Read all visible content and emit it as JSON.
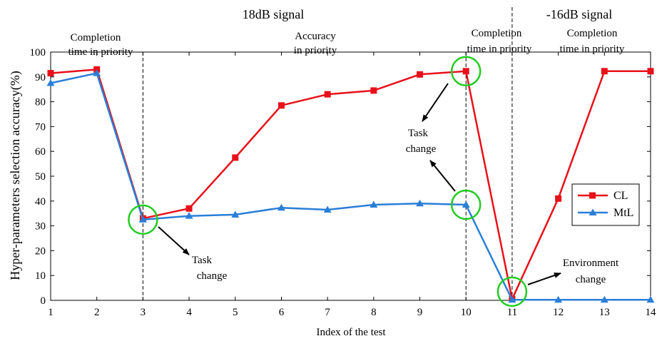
{
  "chart_data": {
    "type": "line",
    "title": "",
    "xlabel": "Index of the test",
    "ylabel": "Hyper-parameters selection accuracy(%)",
    "xlim": [
      1,
      14
    ],
    "ylim": [
      0,
      100
    ],
    "x_ticks": [
      "1",
      "2",
      "3",
      "4",
      "5",
      "6",
      "7",
      "8",
      "9",
      "10",
      "11",
      "12",
      "13",
      "14"
    ],
    "y_ticks": [
      "0",
      "10",
      "20",
      "30",
      "40",
      "50",
      "60",
      "70",
      "80",
      "90",
      "100"
    ],
    "grid": false,
    "legend_position": "right",
    "x": [
      1,
      2,
      3,
      4,
      5,
      6,
      7,
      8,
      9,
      10,
      11,
      12,
      13,
      14
    ],
    "series": [
      {
        "name": "CL",
        "color": "#e8101a",
        "marker": "square",
        "values": [
          91.5,
          93,
          33,
          37,
          57.5,
          78.5,
          83,
          84.5,
          91,
          92.3,
          0.5,
          41,
          92.3,
          92.3
        ]
      },
      {
        "name": "MtL",
        "color": "#2a7fd8",
        "marker": "triangle",
        "values": [
          87.5,
          91.5,
          32.5,
          34,
          34.5,
          37.3,
          36.5,
          38.5,
          39,
          38.5,
          0.2,
          0.2,
          0.2,
          0.2
        ]
      }
    ],
    "regions": [
      {
        "label": "18dB signal"
      },
      {
        "label": "-16dB signal"
      }
    ],
    "annotations": [
      {
        "line1": "Completion",
        "line2": "time in priority"
      },
      {
        "line1": "Accuracy",
        "line2": "in priority"
      },
      {
        "line1": "Completion",
        "line2": "time in priority"
      },
      {
        "line1": "Completion",
        "line2": "time in priority"
      },
      {
        "line1": "Task",
        "line2": "change"
      },
      {
        "line1": "Task",
        "line2": "change"
      },
      {
        "line1": "Environment",
        "line2": "change"
      }
    ],
    "separators_x": [
      3,
      10,
      11
    ],
    "highlight_circles": [
      {
        "x": 3,
        "y": 32.5
      },
      {
        "x": 10,
        "y": 92.3
      },
      {
        "x": 10,
        "y": 38.5
      },
      {
        "x": 11,
        "y": 3.5
      }
    ],
    "highlight_color": "#22cc22"
  }
}
